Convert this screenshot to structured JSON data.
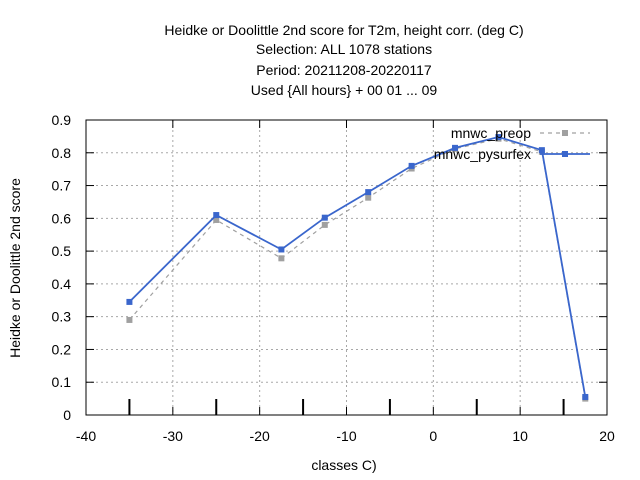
{
  "chart_data": {
    "type": "line",
    "title_lines": [
      "Heidke or Doolittle 2nd score  for T2m, height corr. (deg C)",
      "Selection: ALL    1078 stations",
      "Period: 20211208-20220117",
      "Used {All hours} + 00 01 ... 09"
    ],
    "xlabel": "classes C)",
    "ylabel": "Heidke or Doolittle 2nd score",
    "xlim": [
      -40,
      20
    ],
    "ylim": [
      0,
      0.9
    ],
    "xticks": [
      -40,
      -30,
      -20,
      -10,
      0,
      10,
      20
    ],
    "yticks": [
      0,
      0.1,
      0.2,
      0.3,
      0.4,
      0.5,
      0.6,
      0.7,
      0.8,
      0.9
    ],
    "grid": true,
    "legend_position": "top-right",
    "series": [
      {
        "name": "mnwc_preop",
        "color": "#a0a0a0",
        "dashed": true,
        "x": [
          -35,
          -25,
          -17.5,
          -12.5,
          -7.5,
          -2.5,
          2.5,
          7.5,
          12.5,
          17.5
        ],
        "y": [
          0.29,
          0.595,
          0.478,
          0.58,
          0.663,
          0.752,
          0.812,
          0.843,
          0.803,
          0.05
        ]
      },
      {
        "name": "mnwc_pysurfex",
        "color": "#3a66cc",
        "dashed": false,
        "x": [
          -35,
          -25,
          -17.5,
          -12.5,
          -7.5,
          -2.5,
          2.5,
          7.5,
          12.5,
          17.5
        ],
        "y": [
          0.345,
          0.61,
          0.505,
          0.602,
          0.68,
          0.76,
          0.815,
          0.848,
          0.808,
          0.055
        ]
      }
    ]
  }
}
